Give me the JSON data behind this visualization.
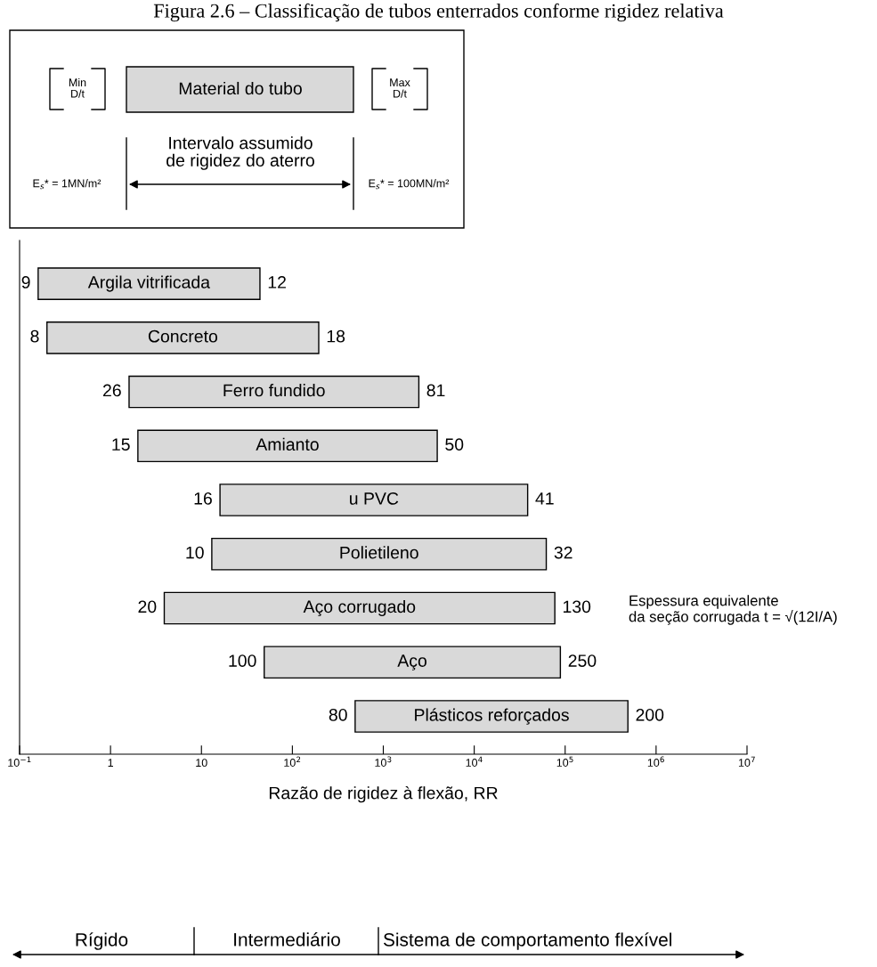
{
  "chart_data": {
    "type": "bar",
    "orientation": "horizontal",
    "title": "Figura 2.6 – Classificação de tubos enterrados conforme rigidez relativa",
    "xlabel": "Razão de rigidez à flexão, RR",
    "categories": [
      "Argila vitrificada",
      "Concreto",
      "Ferro fundido",
      "Amianto",
      "u PVC",
      "Polietileno",
      "Aço corrugado",
      "Aço",
      "Plásticos reforçados"
    ],
    "base": [
      0.16,
      0.2,
      1.6,
      2,
      16,
      13,
      3.9,
      49,
      490
    ],
    "values": [
      43.84,
      194.8,
      2458.4,
      3918,
      38684,
      61987,
      76996.1,
      88551,
      489510
    ],
    "color": "#d9d9d9",
    "log": "x",
    "xlim": [
      0.1,
      10000000
    ],
    "xticks": [
      {
        "value": 0.1,
        "label": "10$^{−1}$"
      },
      1,
      10,
      {
        "value": 100,
        "label": "10$^{2}$"
      },
      {
        "value": 1000,
        "label": "10$^{3}$"
      },
      {
        "value": 10000,
        "label": "10$^{4}$"
      },
      {
        "value": 100000,
        "label": "10$^{5}$"
      },
      {
        "value": 1000000,
        "label": "10$^{6}$"
      },
      {
        "value": 10000000,
        "label": "10$^{7}$"
      }
    ],
    "grid": false,
    "legend": false,
    "annotations": [
      "Min\nD/t",
      "Material do tubo",
      "Max\nD/t",
      "Intervalo assumido\nde rigidez do aterro",
      "E$_{s}$* = 1MN/m²",
      "E$_{s}$* = 100MN/m²",
      "Espessura equivalente\nda seção corrugada t = √(12I/A)",
      "Rígido",
      "Intermediário",
      "Sistema de comportamento flexível",
      {
        "text": "9",
        "x": 0.16,
        "y": "Argila vitrificada"
      },
      {
        "text": "12",
        "x": 44,
        "y": "Argila vitrificada"
      },
      {
        "text": "8",
        "x": 0.2,
        "y": "Concreto"
      },
      {
        "text": "18",
        "x": 195,
        "y": "Concreto"
      },
      {
        "text": "26",
        "x": 1.6,
        "y": "Ferro fundido"
      },
      {
        "text": "81",
        "x": 2460,
        "y": "Ferro fundido"
      },
      {
        "text": "15",
        "x": 2,
        "y": "Amianto"
      },
      {
        "text": "50",
        "x": 3920,
        "y": "Amianto"
      },
      {
        "text": "16",
        "x": 16,
        "y": "u PVC"
      },
      {
        "text": "41",
        "x": 38700,
        "y": "u PVC"
      },
      {
        "text": "10",
        "x": 13,
        "y": "Polietileno"
      },
      {
        "text": "32",
        "x": 62000,
        "y": "Polietileno"
      },
      {
        "text": "20",
        "x": 3.9,
        "y": "Aço corrugado"
      },
      {
        "text": "130",
        "x": 77000,
        "y": "Aço corrugado"
      },
      {
        "text": "100",
        "x": 49,
        "y": "Aço"
      },
      {
        "text": "250",
        "x": 88600,
        "y": "Aço"
      },
      {
        "text": "80",
        "x": 490,
        "y": "Plásticos reforçados"
      },
      {
        "text": "200",
        "x": 490000,
        "y": "Plásticos reforçados"
      }
    ]
  }
}
